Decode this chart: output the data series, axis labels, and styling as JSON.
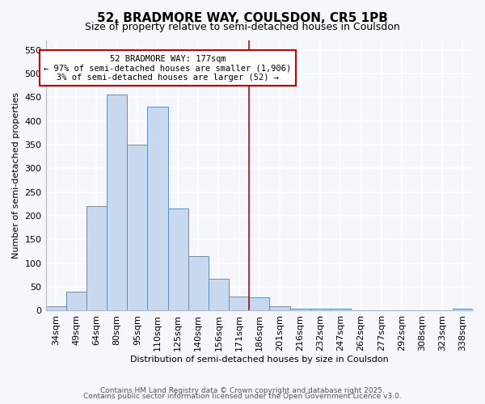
{
  "title_line1": "52, BRADMORE WAY, COULSDON, CR5 1PB",
  "title_line2": "Size of property relative to semi-detached houses in Coulsdon",
  "xlabel": "Distribution of semi-detached houses by size in Coulsdon",
  "ylabel": "Number of semi-detached properties",
  "categories": [
    "34sqm",
    "49sqm",
    "64sqm",
    "80sqm",
    "95sqm",
    "110sqm",
    "125sqm",
    "140sqm",
    "156sqm",
    "171sqm",
    "186sqm",
    "201sqm",
    "216sqm",
    "232sqm",
    "247sqm",
    "262sqm",
    "277sqm",
    "292sqm",
    "308sqm",
    "323sqm",
    "338sqm"
  ],
  "values": [
    10,
    40,
    220,
    455,
    350,
    430,
    215,
    115,
    68,
    30,
    28,
    10,
    5,
    4,
    4,
    0,
    0,
    0,
    0,
    0,
    5
  ],
  "bar_color": "#c8d8ee",
  "bar_edge_color": "#6090c0",
  "vline_index": 10,
  "vline_color": "#cc0000",
  "property_label": "52 BRADMORE WAY: 177sqm",
  "annotation_line2": "← 97% of semi-detached houses are smaller (1,906)",
  "annotation_line3": "3% of semi-detached houses are larger (52) →",
  "annotation_box_facecolor": "white",
  "annotation_box_edgecolor": "#cc0000",
  "background_color": "#f5f7fc",
  "grid_color": "#dde4f0",
  "ylim": [
    0,
    570
  ],
  "yticks": [
    0,
    50,
    100,
    150,
    200,
    250,
    300,
    350,
    400,
    450,
    500,
    550
  ],
  "footer_line1": "Contains HM Land Registry data © Crown copyright and database right 2025.",
  "footer_line2": "Contains public sector information licensed under the Open Government Licence v3.0.",
  "title_fontsize": 11,
  "subtitle_fontsize": 9,
  "axis_label_fontsize": 8,
  "tick_fontsize": 8,
  "footer_fontsize": 6.5
}
